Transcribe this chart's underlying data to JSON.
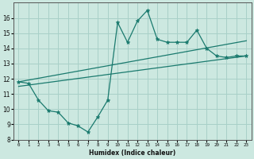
{
  "xlabel": "Humidex (Indice chaleur)",
  "x": [
    0,
    1,
    2,
    3,
    4,
    5,
    6,
    7,
    8,
    9,
    10,
    11,
    12,
    13,
    14,
    15,
    16,
    17,
    18,
    19,
    20,
    21,
    22,
    23
  ],
  "wiggly": [
    11.8,
    11.7,
    10.6,
    9.9,
    9.8,
    9.1,
    8.9,
    8.5,
    9.5,
    10.6,
    15.7,
    14.4,
    15.8,
    16.5,
    14.6,
    14.4,
    14.4,
    14.4,
    15.2,
    14.0,
    13.5,
    13.4,
    13.5,
    13.5
  ],
  "line_upper_start": 11.8,
  "line_upper_end": 14.5,
  "line_lower_start": 11.5,
  "line_lower_end": 13.5,
  "bg_color": "#cce8e0",
  "line_color": "#1a7a6e",
  "grid_color": "#a8d0c8",
  "ylim": [
    8,
    17
  ],
  "yticks": [
    8,
    9,
    10,
    11,
    12,
    13,
    14,
    15,
    16
  ],
  "xlim": [
    -0.5,
    23.5
  ]
}
